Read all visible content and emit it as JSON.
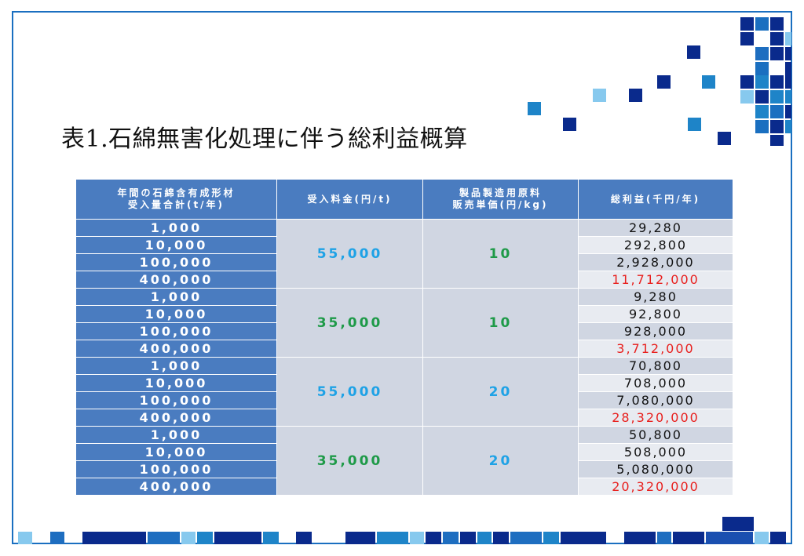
{
  "title": "表1.石綿無害化処理に伴う総利益概算",
  "colors": {
    "frame": "#1a6fc0",
    "header_bg": "#4a7cc0",
    "cell_bg": "#d0d6e2",
    "cyan_value": "#1ea2e6",
    "green_value": "#1e9a48",
    "red_value": "#e8201e"
  },
  "table": {
    "headers": {
      "volume_line1": "年間の石綿含有成形材",
      "volume_line2": "受入量合計(t/年)",
      "fee": "受入料金(円/t)",
      "price_line1": "製品製造用原料",
      "price_line2": "販売単価(円/kg)",
      "profit": "総利益(千円/年)"
    },
    "groups": [
      {
        "fee": "55,000",
        "fee_color": "cyan",
        "price": "10",
        "price_color": "green",
        "rows": [
          {
            "volume": "1,000",
            "profit": "29,280"
          },
          {
            "volume": "10,000",
            "profit": "292,800"
          },
          {
            "volume": "100,000",
            "profit": "2,928,000"
          },
          {
            "volume": "400,000",
            "profit": "11,712,000"
          }
        ]
      },
      {
        "fee": "35,000",
        "fee_color": "green",
        "price": "10",
        "price_color": "green",
        "rows": [
          {
            "volume": "1,000",
            "profit": "9,280"
          },
          {
            "volume": "10,000",
            "profit": "92,800"
          },
          {
            "volume": "100,000",
            "profit": "928,000"
          },
          {
            "volume": "400,000",
            "profit": "3,712,000"
          }
        ]
      },
      {
        "fee": "55,000",
        "fee_color": "cyan",
        "price": "20",
        "price_color": "cyan",
        "rows": [
          {
            "volume": "1,000",
            "profit": "70,800"
          },
          {
            "volume": "10,000",
            "profit": "708,000"
          },
          {
            "volume": "100,000",
            "profit": "7,080,000"
          },
          {
            "volume": "400,000",
            "profit": "28,320,000"
          }
        ]
      },
      {
        "fee": "35,000",
        "fee_color": "green",
        "price": "20",
        "price_color": "cyan",
        "rows": [
          {
            "volume": "1,000",
            "profit": "50,800"
          },
          {
            "volume": "10,000",
            "profit": "508,000"
          },
          {
            "volume": "100,000",
            "profit": "5,080,000"
          },
          {
            "volume": "400,000",
            "profit": "20,320,000"
          }
        ]
      }
    ]
  }
}
